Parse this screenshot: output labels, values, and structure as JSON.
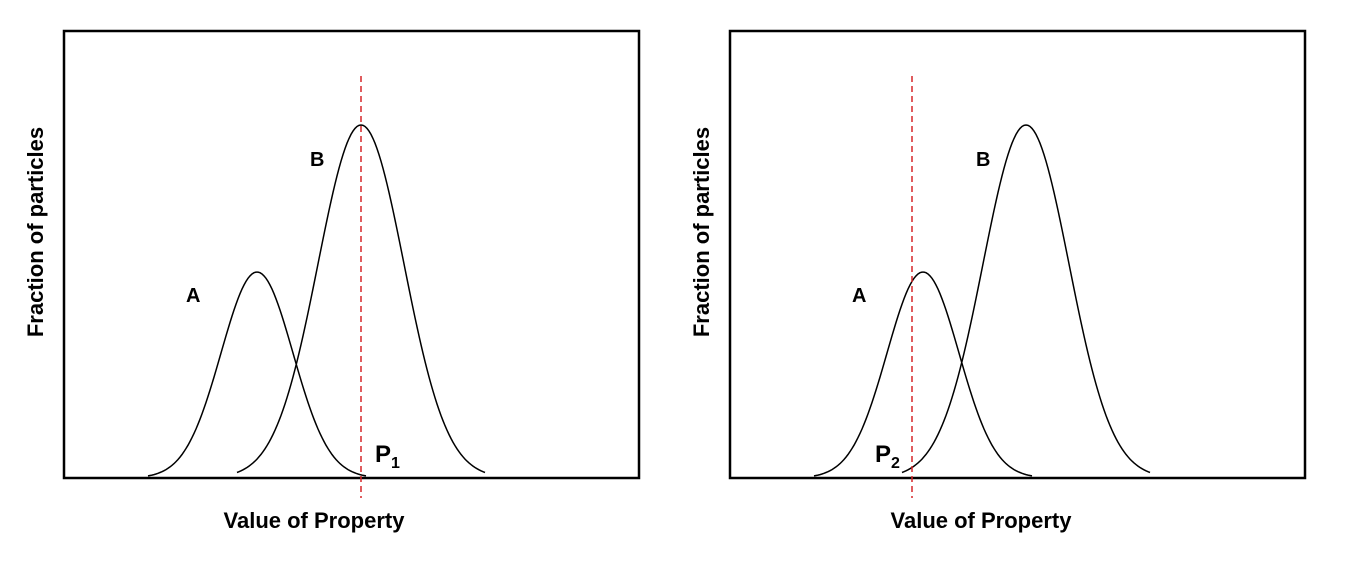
{
  "colors": {
    "curve": "#000000",
    "frame": "#000000",
    "marker_line": "#d62728"
  },
  "panels": [
    {
      "ylabel": "Fraction of particles",
      "xlabel": "Value of Property",
      "curve_a_label": "A",
      "curve_b_label": "B",
      "marker_main": "P",
      "marker_sub": "1",
      "marker_at": "peak of B"
    },
    {
      "ylabel": "Fraction of particles",
      "xlabel": "Value of Property",
      "curve_a_label": "A",
      "curve_b_label": "B",
      "marker_main": "P",
      "marker_sub": "2",
      "marker_at": "peak of A"
    }
  ]
}
